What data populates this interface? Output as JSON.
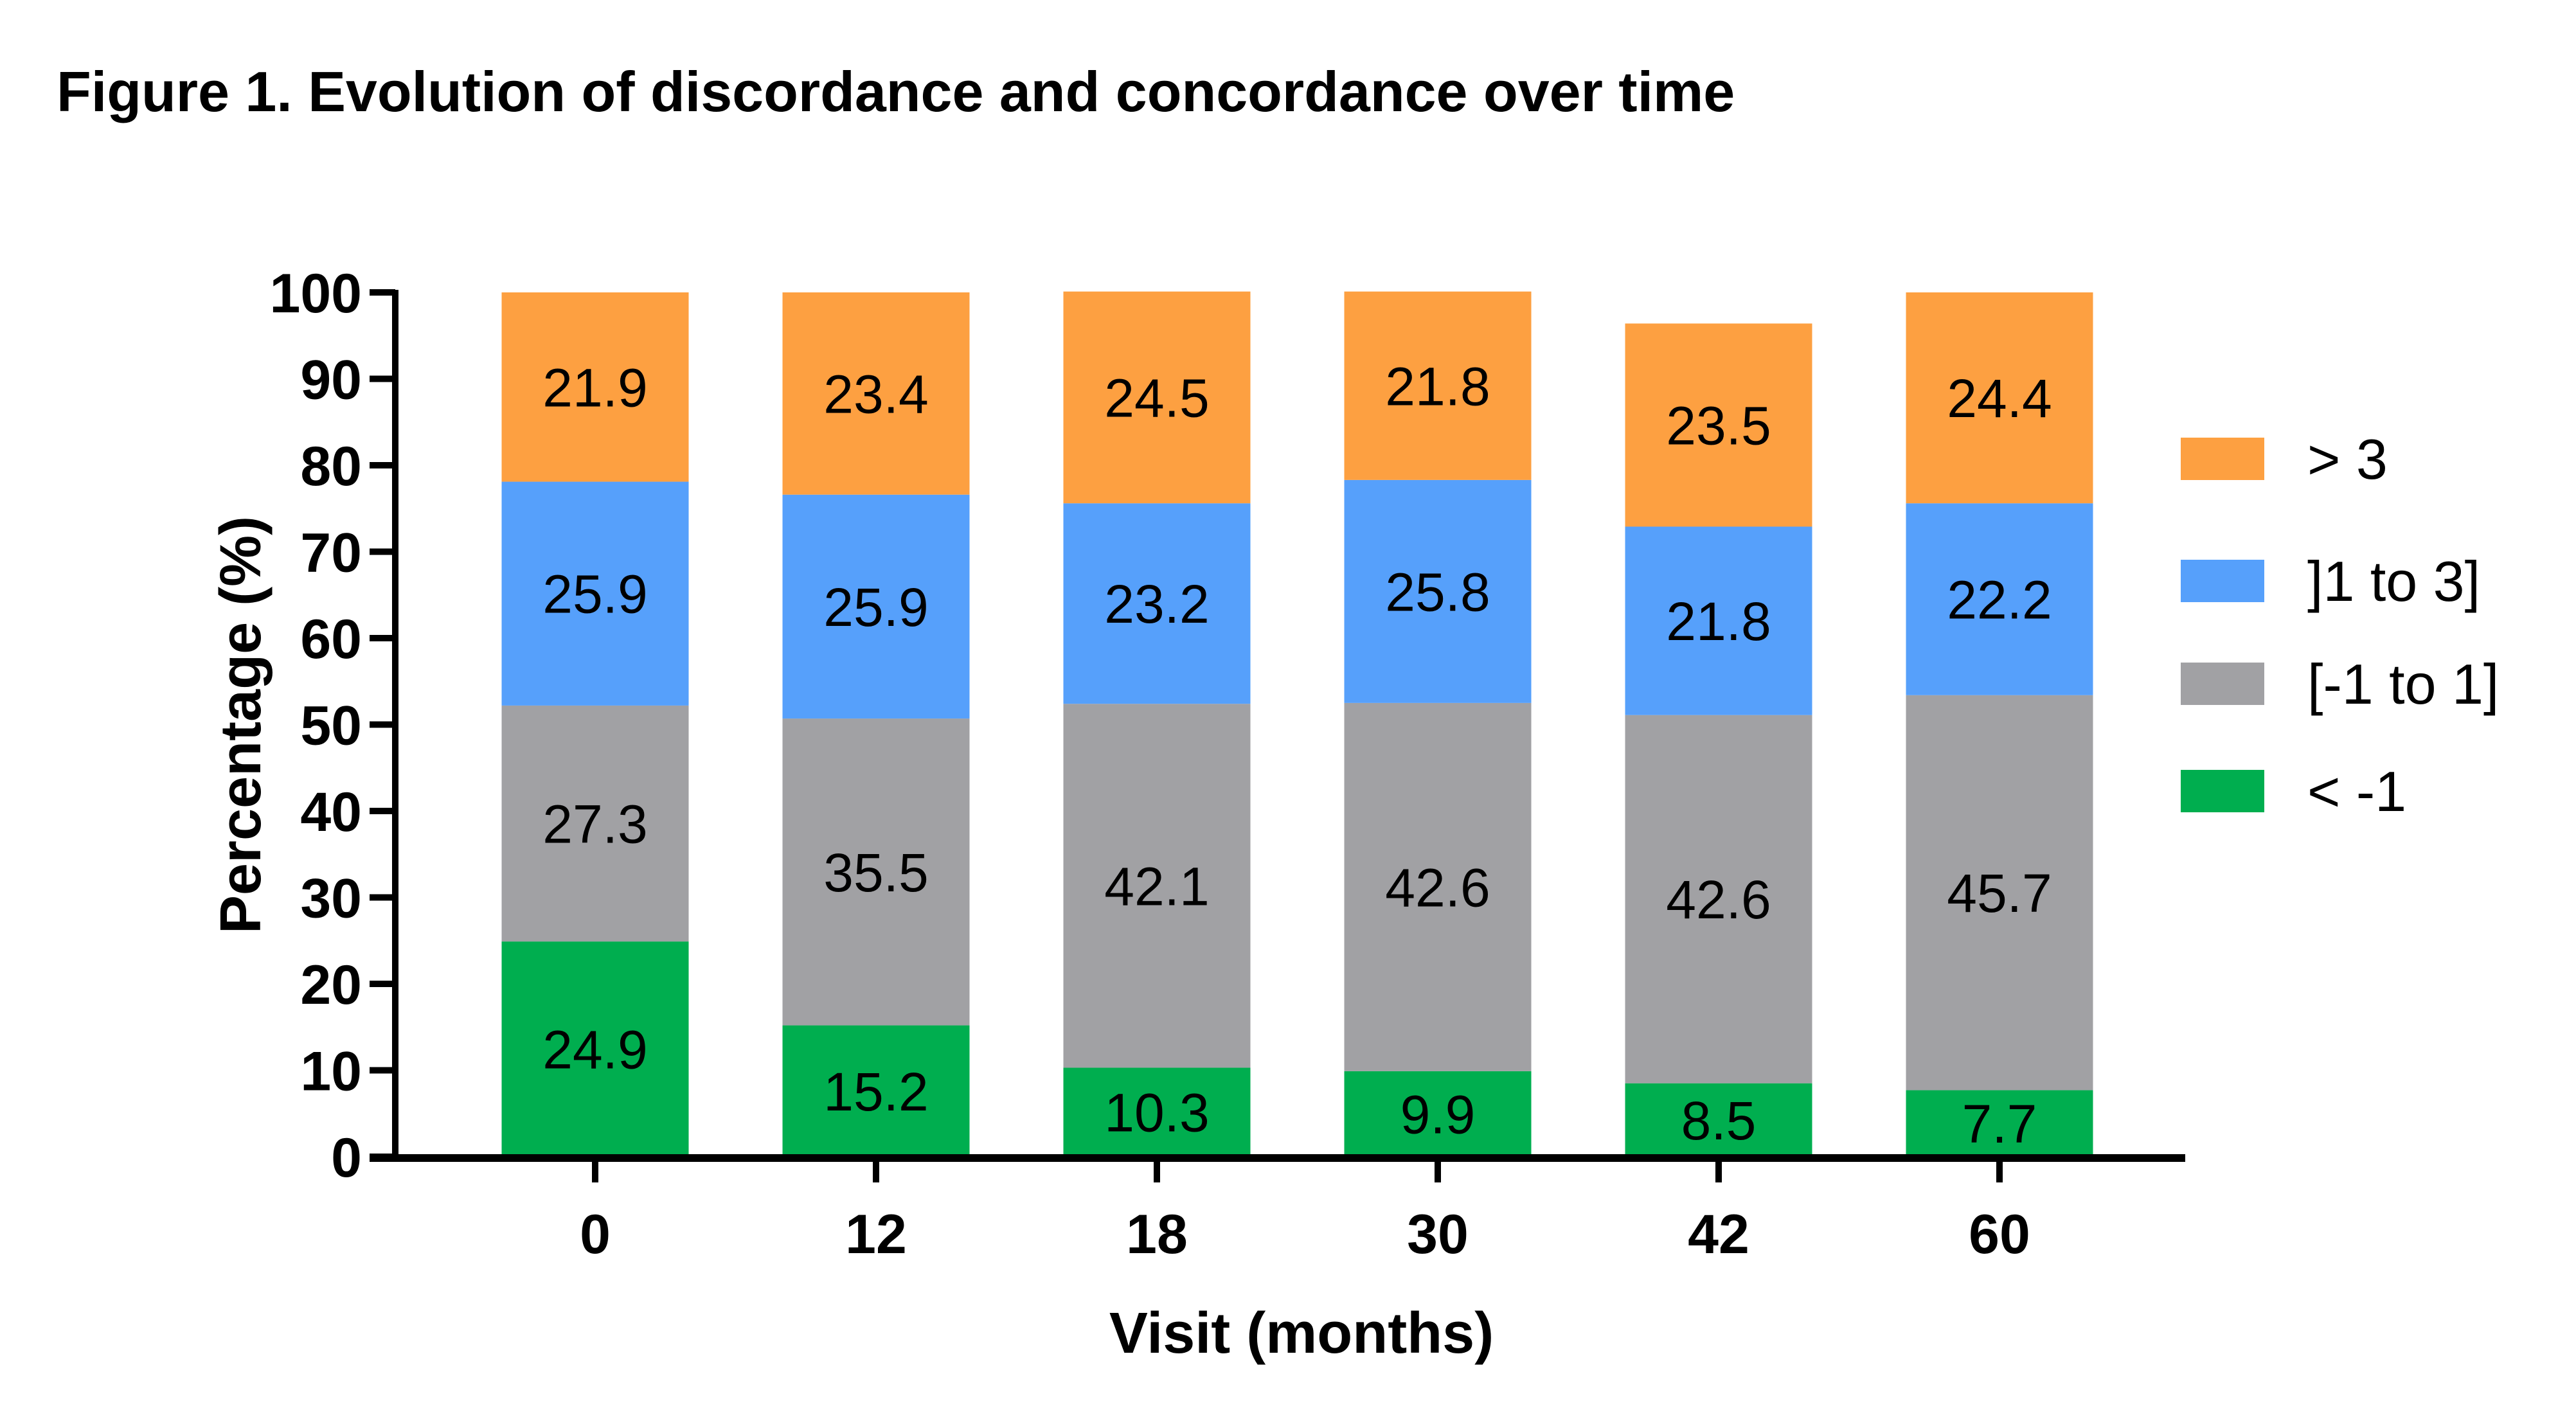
{
  "chart_data": {
    "type": "bar",
    "stacked": true,
    "title": "Figure 1. Evolution of discordance and concordance over time",
    "xlabel": "Visit (months)",
    "ylabel": "Percentage (%)",
    "ylim": [
      0,
      100
    ],
    "yticks": [
      0,
      10,
      20,
      30,
      40,
      50,
      60,
      70,
      80,
      90,
      100
    ],
    "categories": [
      "0",
      "12",
      "18",
      "30",
      "42",
      "60"
    ],
    "grid": false,
    "legend_position": "right",
    "series": [
      {
        "name": "< -1",
        "color": "#00ae4f",
        "values": [
          24.9,
          15.2,
          10.3,
          9.9,
          8.5,
          7.7
        ]
      },
      {
        "name": "[-1 to 1]",
        "color": "#a1a1a4",
        "values": [
          27.3,
          35.5,
          42.1,
          42.6,
          42.6,
          45.7
        ]
      },
      {
        "name": "]1 to 3]",
        "color": "#56a0fb",
        "values": [
          25.9,
          25.9,
          23.2,
          25.8,
          21.8,
          22.2
        ]
      },
      {
        "name": "> 3",
        "color": "#fda041",
        "values": [
          21.9,
          23.4,
          24.5,
          21.8,
          23.5,
          24.4
        ]
      }
    ],
    "legend_order": [
      "> 3",
      "]1 to 3]",
      "[-1 to 1]",
      "< -1"
    ]
  }
}
